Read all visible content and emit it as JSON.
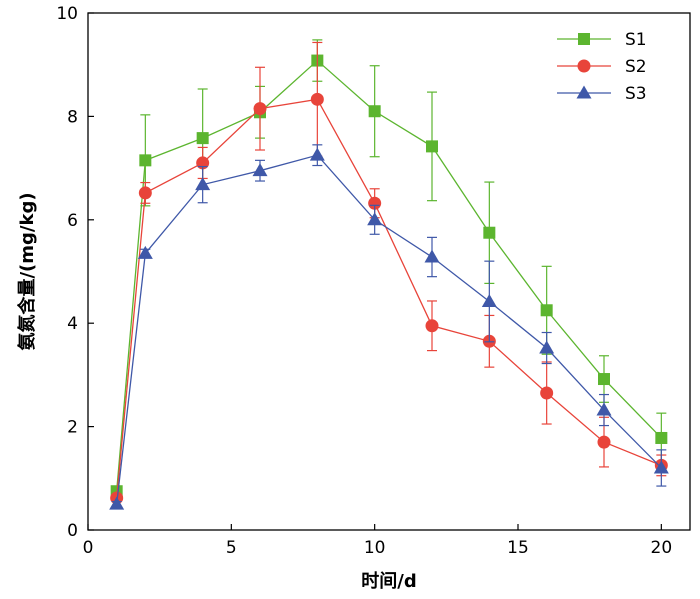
{
  "chart_data": {
    "type": "line",
    "title": "",
    "xlabel": "时间/d",
    "ylabel": "氨氮含量/(mg/kg)",
    "xlim": [
      0,
      21
    ],
    "ylim": [
      0,
      10
    ],
    "xticks": [
      0,
      5,
      10,
      15,
      20
    ],
    "yticks": [
      0,
      2,
      4,
      6,
      8,
      10
    ],
    "grid": false,
    "legend_position": "top-right",
    "x": [
      1,
      2,
      4,
      6,
      8,
      10,
      12,
      14,
      16,
      18,
      20
    ],
    "series": [
      {
        "name": "S1",
        "color": "#5cb52f",
        "marker": "square",
        "values": [
          0.75,
          7.15,
          7.58,
          8.08,
          9.08,
          8.1,
          7.42,
          5.75,
          4.25,
          2.92,
          1.78
        ],
        "errors": [
          0.05,
          0.88,
          0.95,
          0.5,
          0.4,
          0.88,
          1.05,
          0.98,
          0.85,
          0.45,
          0.48
        ]
      },
      {
        "name": "S2",
        "color": "#e8443a",
        "marker": "circle",
        "values": [
          0.62,
          6.52,
          7.1,
          8.15,
          8.33,
          6.32,
          3.95,
          3.65,
          2.65,
          1.7,
          1.25
        ],
        "errors": [
          0.05,
          0.2,
          0.3,
          0.8,
          1.1,
          0.28,
          0.48,
          0.5,
          0.6,
          0.48,
          0.2
        ]
      },
      {
        "name": "S3",
        "color": "#3f58a8",
        "marker": "triangle",
        "values": [
          0.5,
          5.35,
          6.68,
          6.95,
          7.25,
          6.0,
          5.28,
          4.42,
          3.52,
          2.32,
          1.2
        ],
        "errors": [
          0.05,
          0.08,
          0.35,
          0.2,
          0.2,
          0.28,
          0.38,
          0.78,
          0.3,
          0.3,
          0.35
        ]
      }
    ]
  }
}
